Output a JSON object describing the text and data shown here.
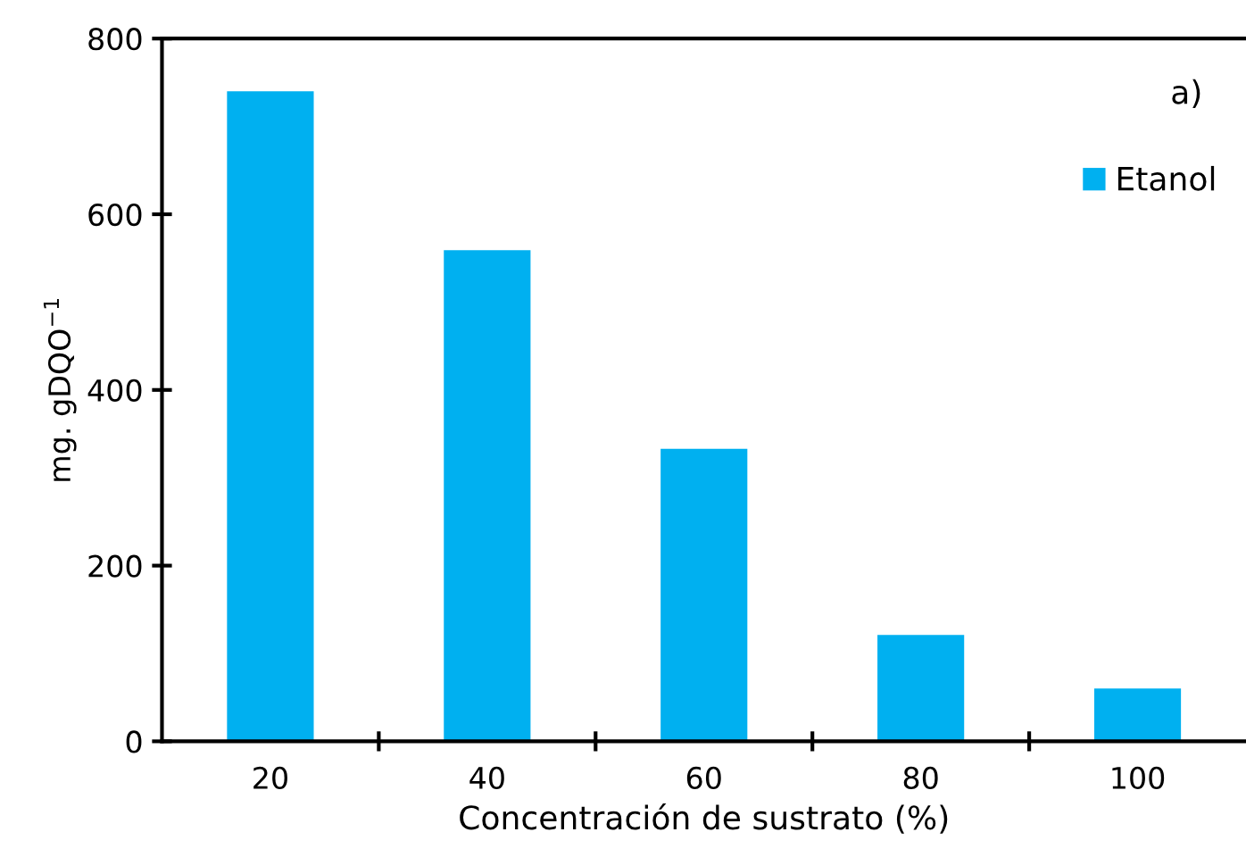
{
  "chart_data": {
    "type": "bar",
    "xlabel": "Concentración de sustrato (%)",
    "ylabel": "mg. gDQO$^{−1}$",
    "annotations": [
      "a)"
    ],
    "categories": [
      "20",
      "40",
      "60",
      "80",
      "100"
    ],
    "series": [
      {
        "name": "Etanol",
        "color": "#00b0f0",
        "values": [
          740,
          559,
          333,
          121,
          60
        ]
      }
    ],
    "ylim": [
      0,
      800
    ],
    "yticks": [
      0,
      200,
      400,
      600,
      800
    ],
    "grid": false,
    "legend": "top right"
  }
}
